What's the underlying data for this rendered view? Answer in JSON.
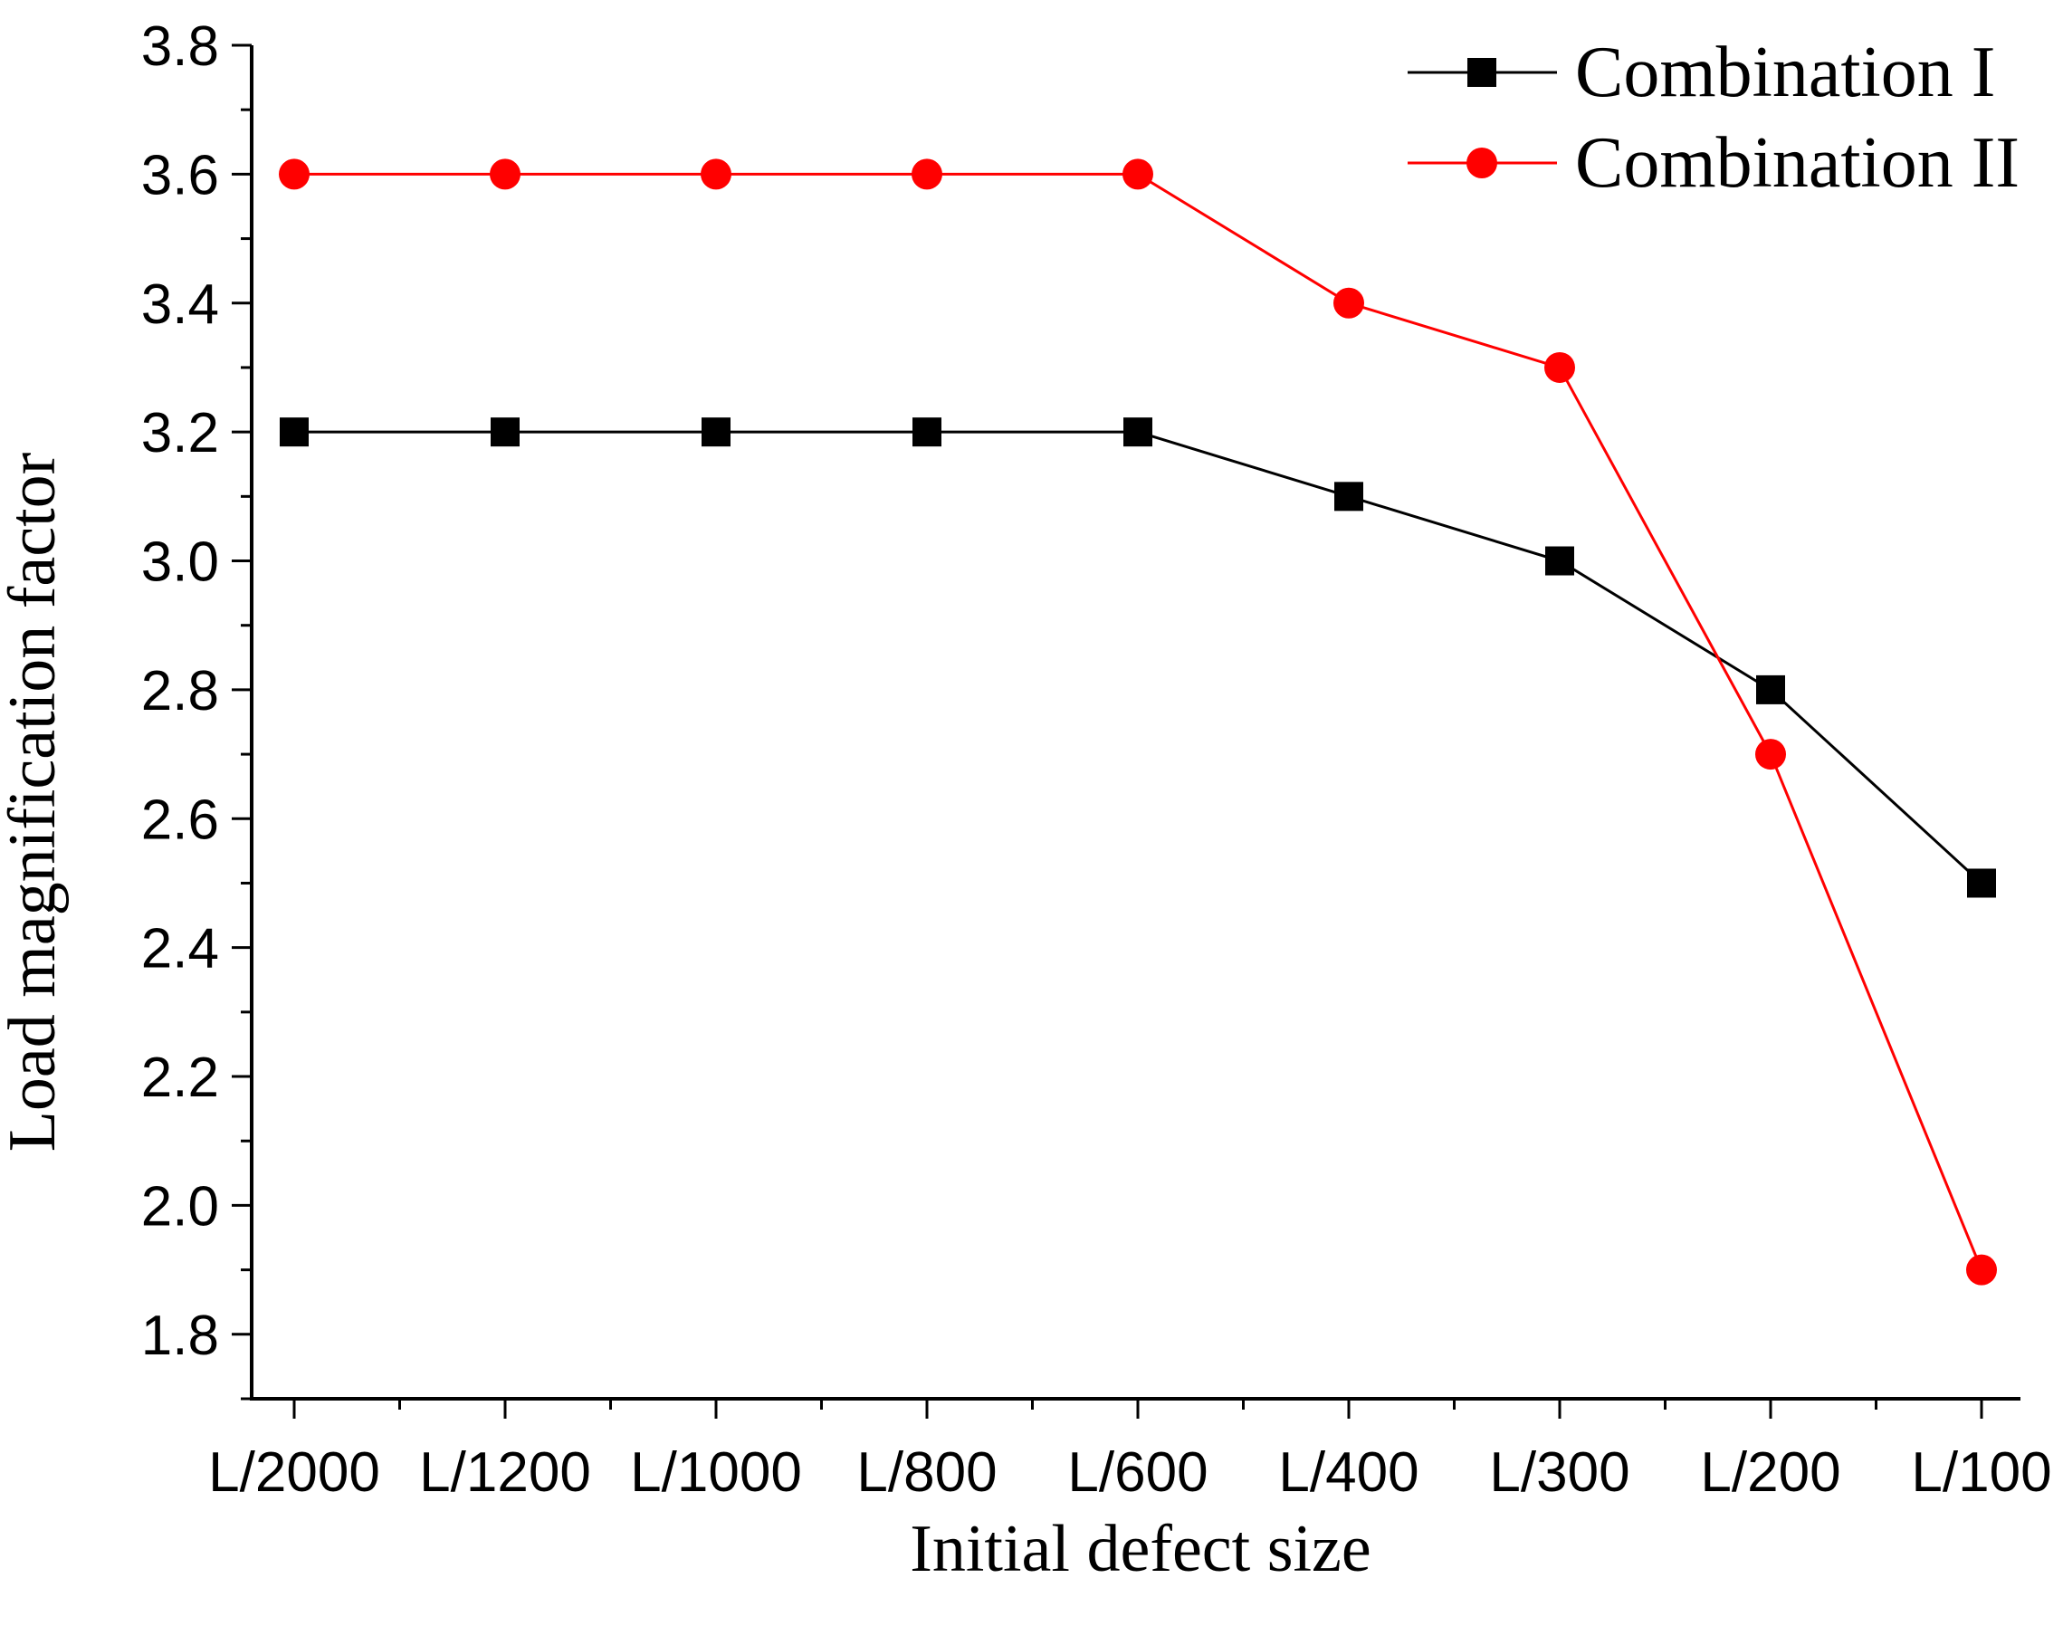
{
  "chart_data": {
    "type": "line",
    "title": "",
    "xlabel": "Initial defect size",
    "ylabel": "Load magnification factor",
    "categories": [
      "L/2000",
      "L/1200",
      "L/1000",
      "L/800",
      "L/600",
      "L/400",
      "L/300",
      "L/200",
      "L/100"
    ],
    "ylim": [
      1.7,
      3.8
    ],
    "yticks": [
      "1.8",
      "2.0",
      "2.2",
      "2.4",
      "2.6",
      "2.8",
      "3.0",
      "3.2",
      "3.4",
      "3.6",
      "3.8"
    ],
    "grid": false,
    "legend_position": "top-right",
    "series": [
      {
        "name": "Combination I",
        "color": "#000000",
        "marker": "square",
        "values": [
          3.2,
          3.2,
          3.2,
          3.2,
          3.2,
          3.1,
          3.0,
          2.8,
          2.5
        ]
      },
      {
        "name": "Combination II",
        "color": "#ff0000",
        "marker": "circle",
        "values": [
          3.6,
          3.6,
          3.6,
          3.6,
          3.6,
          3.4,
          3.3,
          2.7,
          1.9
        ]
      }
    ]
  }
}
